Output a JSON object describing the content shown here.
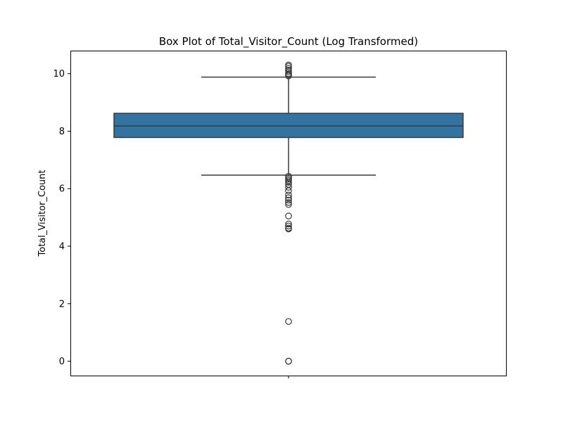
{
  "chart_data": {
    "type": "box",
    "title": "Box Plot of Total_Visitor_Count (Log Transformed)",
    "xlabel": "",
    "ylabel": "Total_Visitor_Count",
    "ylim": [
      -0.5,
      10.8
    ],
    "yticks": [
      0,
      2,
      4,
      6,
      8,
      10
    ],
    "grid": false,
    "legend": "none",
    "colors": {
      "box_fill": "#3274a1",
      "line": "#3a3a3a"
    },
    "box": {
      "q1": 7.78,
      "median": 8.18,
      "q3": 8.62,
      "whisker_low": 6.47,
      "whisker_high": 9.88
    },
    "outliers": [
      10.3,
      10.25,
      10.18,
      10.12,
      10.06,
      10.0,
      9.96,
      9.92,
      6.43,
      6.38,
      6.33,
      6.28,
      6.22,
      6.15,
      6.05,
      5.93,
      5.78,
      5.68,
      5.6,
      5.52,
      5.45,
      5.05,
      4.77,
      4.7,
      4.63,
      4.6,
      1.38,
      0.0,
      0.0
    ]
  }
}
